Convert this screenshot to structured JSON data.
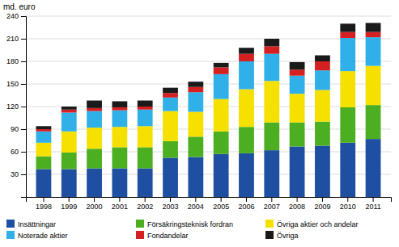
{
  "chart_data": {
    "type": "bar",
    "stacked": true,
    "y_label": "md. euro",
    "categories": [
      "1998",
      "1999",
      "2000",
      "2001",
      "2002",
      "2003",
      "2004",
      "2005",
      "2006",
      "2007",
      "2008",
      "2009",
      "2010",
      "2011"
    ],
    "series": [
      {
        "name": "Insättningar",
        "color": "#1f4fa0",
        "values": [
          37,
          37,
          38,
          38,
          38,
          52,
          53,
          57,
          58,
          62,
          67,
          68,
          72,
          77
        ]
      },
      {
        "name": "Försäkringsteknisk fordran",
        "color": "#4caf22",
        "values": [
          17,
          22,
          26,
          28,
          28,
          22,
          27,
          30,
          35,
          37,
          32,
          32,
          47,
          45
        ]
      },
      {
        "name": "Övriga aktier och andelar",
        "color": "#f5e000",
        "values": [
          18,
          28,
          28,
          27,
          28,
          40,
          33,
          43,
          50,
          55,
          38,
          42,
          48,
          52
        ]
      },
      {
        "name": "Noterade aktier",
        "color": "#30b0e8",
        "values": [
          15,
          25,
          22,
          22,
          22,
          18,
          26,
          33,
          37,
          36,
          24,
          26,
          44,
          38
        ]
      },
      {
        "name": "Fondandelar",
        "color": "#d42020",
        "values": [
          3,
          4,
          4,
          4,
          4,
          6,
          7,
          9,
          10,
          10,
          8,
          12,
          8,
          7
        ]
      },
      {
        "name": "Övriga",
        "color": "#1a1a1a",
        "values": [
          4,
          4,
          10,
          8,
          8,
          7,
          7,
          6,
          8,
          10,
          10,
          8,
          11,
          12
        ]
      }
    ],
    "ylim": [
      0,
      240
    ],
    "yticks": [
      30,
      60,
      90,
      120,
      150,
      180,
      210,
      240
    ],
    "grid": true,
    "legend": "bottom"
  }
}
